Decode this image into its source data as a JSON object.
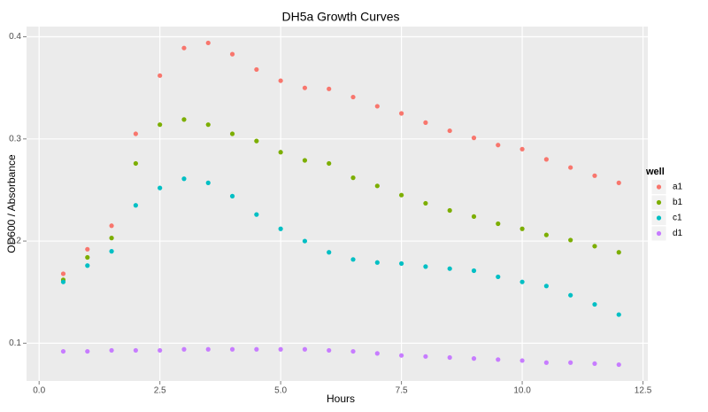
{
  "chart_data": {
    "type": "scatter",
    "title": "DH5a Growth Curves",
    "x_label": "Hours",
    "y_label": "OD600 / Absorbance",
    "x": [
      0.5,
      1,
      1.5,
      2,
      2.5,
      3,
      3.5,
      4,
      4.5,
      5,
      5.5,
      6,
      6.5,
      7,
      7.5,
      8,
      8.5,
      9,
      9.5,
      10,
      10.5,
      11,
      11.5,
      12
    ],
    "series": [
      {
        "name": "a1",
        "color": "#F8766D",
        "values": [
          0.168,
          0.192,
          0.215,
          0.305,
          0.362,
          0.389,
          0.394,
          0.383,
          0.368,
          0.357,
          0.35,
          0.349,
          0.341,
          0.332,
          0.325,
          0.316,
          0.308,
          0.301,
          0.294,
          0.29,
          0.28,
          0.272,
          0.264,
          0.257
        ]
      },
      {
        "name": "b1",
        "color": "#7CAE00",
        "values": [
          0.162,
          0.184,
          0.203,
          0.276,
          0.314,
          0.319,
          0.314,
          0.305,
          0.298,
          0.287,
          0.279,
          0.276,
          0.262,
          0.254,
          0.245,
          0.237,
          0.23,
          0.224,
          0.217,
          0.212,
          0.206,
          0.201,
          0.195,
          0.189
        ]
      },
      {
        "name": "c1",
        "color": "#00BFC4",
        "values": [
          0.16,
          0.176,
          0.19,
          0.235,
          0.252,
          0.261,
          0.257,
          0.244,
          0.226,
          0.212,
          0.2,
          0.189,
          0.182,
          0.179,
          0.178,
          0.175,
          0.173,
          0.171,
          0.165,
          0.16,
          0.156,
          0.147,
          0.138,
          0.128
        ]
      },
      {
        "name": "d1",
        "color": "#C77CFF",
        "values": [
          0.092,
          0.092,
          0.093,
          0.093,
          0.093,
          0.094,
          0.094,
          0.094,
          0.094,
          0.094,
          0.094,
          0.093,
          0.092,
          0.09,
          0.088,
          0.087,
          0.086,
          0.085,
          0.084,
          0.083,
          0.081,
          0.081,
          0.08,
          0.079
        ]
      }
    ],
    "legend_title": "well",
    "legend_position": "right",
    "xlim": [
      -0.26,
      12.6
    ],
    "ylim": [
      0.063,
      0.41
    ],
    "xticks": [
      {
        "value": 0,
        "label": "0.0"
      },
      2.5,
      {
        "value": 5,
        "label": "5.0"
      },
      7.5,
      {
        "value": 10,
        "label": "10.0"
      },
      12.5
    ],
    "yticks": [
      0.1,
      0.2,
      0.3,
      0.4
    ],
    "grid": true
  }
}
